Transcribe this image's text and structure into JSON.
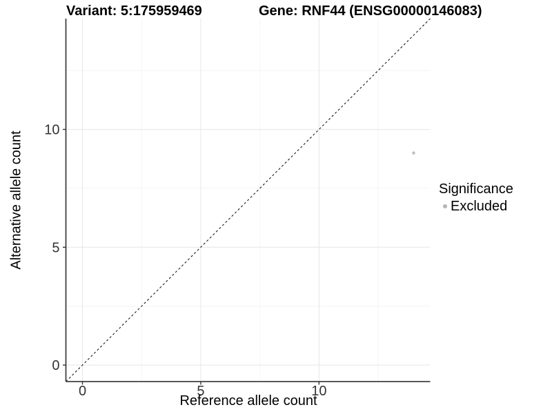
{
  "chart_data": {
    "type": "scatter",
    "title_left": "Variant: 5:175959469",
    "title_right": "Gene: RNF44 (ENSG00000146083)",
    "xlabel": "Reference allele count",
    "ylabel": "Alternative allele count",
    "xlim": [
      -0.7,
      14.7
    ],
    "ylim": [
      -0.7,
      14.7
    ],
    "xticks": [
      0,
      5,
      10
    ],
    "yticks": [
      0,
      5,
      10
    ],
    "xticks_minor": [
      2.5,
      7.5,
      12.5
    ],
    "yticks_minor": [
      2.5,
      7.5,
      12.5
    ],
    "grid": "major+minor",
    "identity_line": {
      "style": "dashed",
      "slope": 1,
      "intercept": 0
    },
    "series": [
      {
        "name": "Excluded",
        "color": "#c2c2c2",
        "points": [
          [
            14,
            9
          ]
        ]
      }
    ],
    "legend": {
      "title": "Significance",
      "position": "right",
      "entries": [
        {
          "label": "Excluded",
          "color": "#b4b4b4",
          "marker": "circle"
        }
      ]
    }
  },
  "colors": {
    "background": "#ffffff",
    "axis_line": "#404040",
    "tick": "#333333",
    "tick_label": "#333333",
    "grid_major": "#e8e8e8",
    "grid_minor": "#f4f4f4",
    "identity_line": "#1a1a1a",
    "title": "#000000"
  }
}
